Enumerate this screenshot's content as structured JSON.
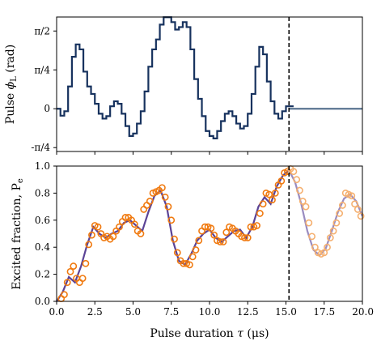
{
  "chart_data": [
    {
      "type": "line",
      "panel": "top",
      "ylabel": "Pulse ϕL (rad)",
      "ylabel_text": "Pulse ",
      "ylabel_sym": "ϕ",
      "ylabel_sub": "L",
      "ylabel_unit": " (rad)",
      "xlim": [
        0,
        20
      ],
      "ylim": [
        -0.8635,
        1.8536
      ],
      "yticks": [
        {
          "value": -0.7854,
          "label": "-π/4"
        },
        {
          "value": 0,
          "label": "0"
        },
        {
          "value": 0.7854,
          "label": "π/4"
        },
        {
          "value": 1.5708,
          "label": "π/2"
        }
      ],
      "series": [
        {
          "color": "#17325e",
          "step": true,
          "x": [
            0,
            0.25,
            0.5,
            0.75,
            1.0,
            1.25,
            1.5,
            1.75,
            2.0,
            2.25,
            2.5,
            2.75,
            3.0,
            3.25,
            3.5,
            3.75,
            4.0,
            4.25,
            4.5,
            4.75,
            5.0,
            5.25,
            5.5,
            5.75,
            6.0,
            6.25,
            6.5,
            6.75,
            7.0,
            7.25,
            7.5,
            7.75,
            8.0,
            8.25,
            8.5,
            8.75,
            9.0,
            9.25,
            9.5,
            9.75,
            10.0,
            10.25,
            10.5,
            10.75,
            11.0,
            11.25,
            11.5,
            11.75,
            12.0,
            12.25,
            12.5,
            12.75,
            13.0,
            13.25,
            13.5,
            13.75,
            14.0,
            14.25,
            14.5,
            14.75,
            15.0,
            15.25
          ],
          "y": [
            0.0,
            -0.14,
            -0.05,
            0.45,
            1.05,
            1.3,
            1.2,
            0.75,
            0.45,
            0.3,
            0.1,
            -0.1,
            -0.2,
            -0.15,
            0.05,
            0.15,
            0.1,
            -0.1,
            -0.35,
            -0.55,
            -0.5,
            -0.3,
            -0.05,
            0.35,
            0.85,
            1.2,
            1.4,
            1.7,
            1.85,
            1.85,
            1.75,
            1.6,
            1.65,
            1.75,
            1.65,
            1.2,
            0.6,
            0.2,
            -0.15,
            -0.45,
            -0.55,
            -0.6,
            -0.45,
            -0.25,
            -0.1,
            -0.05,
            -0.15,
            -0.3,
            -0.4,
            -0.35,
            -0.1,
            0.3,
            0.85,
            1.25,
            1.1,
            0.55,
            0.15,
            -0.1,
            -0.2,
            -0.05,
            0.05,
            0.05
          ]
        },
        {
          "color": "#5a7491",
          "step": false,
          "x": [
            15.2,
            20.0
          ],
          "y": [
            0.0,
            0.0
          ]
        }
      ],
      "vline": {
        "x": 15.2,
        "style": "dashed"
      }
    },
    {
      "type": "scatter",
      "panel": "bottom",
      "xlabel": "Pulse duration τ (μs)",
      "xlabel_text": "Pulse duration ",
      "xlabel_sym": "τ",
      "xlabel_unit": " (μs)",
      "ylabel": "Excited fraction, Pe",
      "ylabel_text": "Excited fraction, P",
      "ylabel_sub": "e",
      "xlim": [
        0,
        20
      ],
      "ylim": [
        0,
        1
      ],
      "xticks": [
        "0.0",
        "2.5",
        "5.0",
        "7.5",
        "10.0",
        "12.5",
        "15.0",
        "17.5",
        "20.0"
      ],
      "yticks": [
        "0.0",
        "0.2",
        "0.4",
        "0.6",
        "0.8",
        "1.0"
      ],
      "series": [
        {
          "kind": "line",
          "color": "#5b4396",
          "x": [
            0.0,
            0.4,
            0.8,
            1.2,
            1.6,
            2.0,
            2.4,
            2.8,
            3.2,
            3.6,
            4.0,
            4.4,
            4.8,
            5.2,
            5.6,
            6.0,
            6.4,
            6.8,
            7.2,
            7.6,
            8.0,
            8.4,
            8.8,
            9.2,
            9.6,
            10.0,
            10.4,
            10.8,
            11.2,
            11.6,
            12.0,
            12.4,
            12.8,
            13.2,
            13.6,
            14.0,
            14.4,
            14.8,
            15.2
          ],
          "y": [
            0.0,
            0.07,
            0.18,
            0.14,
            0.26,
            0.42,
            0.55,
            0.5,
            0.47,
            0.5,
            0.52,
            0.58,
            0.6,
            0.56,
            0.52,
            0.66,
            0.78,
            0.82,
            0.7,
            0.45,
            0.3,
            0.27,
            0.35,
            0.45,
            0.5,
            0.53,
            0.47,
            0.44,
            0.48,
            0.52,
            0.53,
            0.47,
            0.55,
            0.7,
            0.77,
            0.72,
            0.85,
            0.93,
            0.97
          ]
        },
        {
          "kind": "line",
          "color": "#9a8cc0",
          "x": [
            15.2,
            15.6,
            16.0,
            16.4,
            16.8,
            17.2,
            17.6,
            18.0,
            18.4,
            18.8,
            19.2,
            19.6,
            20.0
          ],
          "y": [
            0.97,
            0.88,
            0.72,
            0.52,
            0.38,
            0.34,
            0.39,
            0.52,
            0.66,
            0.76,
            0.79,
            0.74,
            0.63
          ]
        },
        {
          "kind": "points",
          "color": "#f07a10",
          "x": [
            0.3,
            0.5,
            0.7,
            0.9,
            1.1,
            1.3,
            1.5,
            1.7,
            1.9,
            2.1,
            2.3,
            2.5,
            2.7,
            2.9,
            3.1,
            3.3,
            3.5,
            3.7,
            3.9,
            4.1,
            4.3,
            4.5,
            4.7,
            4.9,
            5.1,
            5.3,
            5.5,
            5.7,
            5.9,
            6.1,
            6.3,
            6.5,
            6.7,
            6.9,
            7.1,
            7.3,
            7.5,
            7.7,
            7.9,
            8.1,
            8.3,
            8.5,
            8.7,
            8.9,
            9.1,
            9.3,
            9.5,
            9.7,
            9.9,
            10.1,
            10.3,
            10.5,
            10.7,
            10.9,
            11.1,
            11.3,
            11.5,
            11.7,
            11.9,
            12.1,
            12.3,
            12.5,
            12.7,
            12.9,
            13.1,
            13.3,
            13.5,
            13.7,
            13.9,
            14.1,
            14.3,
            14.5,
            14.7,
            14.9,
            15.1
          ],
          "y": [
            0.02,
            0.05,
            0.14,
            0.22,
            0.26,
            0.17,
            0.14,
            0.17,
            0.28,
            0.42,
            0.49,
            0.56,
            0.55,
            0.5,
            0.47,
            0.48,
            0.46,
            0.48,
            0.52,
            0.55,
            0.59,
            0.62,
            0.62,
            0.6,
            0.57,
            0.52,
            0.5,
            0.68,
            0.71,
            0.74,
            0.8,
            0.81,
            0.82,
            0.84,
            0.77,
            0.7,
            0.6,
            0.46,
            0.36,
            0.3,
            0.28,
            0.28,
            0.27,
            0.33,
            0.38,
            0.45,
            0.52,
            0.55,
            0.55,
            0.54,
            0.49,
            0.45,
            0.44,
            0.44,
            0.51,
            0.55,
            0.54,
            0.52,
            0.5,
            0.48,
            0.47,
            0.47,
            0.55,
            0.55,
            0.56,
            0.65,
            0.72,
            0.8,
            0.79,
            0.75,
            0.8,
            0.86,
            0.89,
            0.95,
            0.96
          ]
        },
        {
          "kind": "points",
          "color": "#f5b070",
          "x": [
            15.3,
            15.5,
            15.7,
            15.9,
            16.1,
            16.3,
            16.5,
            16.7,
            16.9,
            17.1,
            17.3,
            17.5,
            17.7,
            17.9,
            18.1,
            18.3,
            18.5,
            18.7,
            18.9,
            19.1,
            19.3,
            19.5,
            19.7,
            19.9
          ],
          "y": [
            0.98,
            0.96,
            0.9,
            0.82,
            0.74,
            0.7,
            0.58,
            0.48,
            0.4,
            0.36,
            0.35,
            0.36,
            0.4,
            0.47,
            0.52,
            0.58,
            0.65,
            0.71,
            0.8,
            0.79,
            0.78,
            0.72,
            0.68,
            0.63
          ]
        }
      ],
      "vline": {
        "x": 15.2,
        "style": "dashed"
      }
    }
  ]
}
